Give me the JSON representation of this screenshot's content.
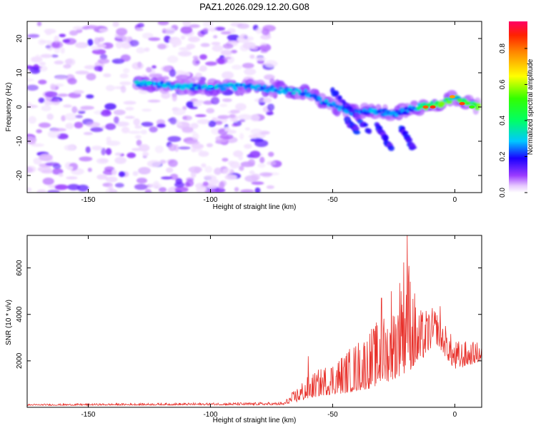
{
  "title": "PAZ1.2026.029.12.20.G08",
  "chart_data": [
    {
      "type": "heatmap",
      "title": "PAZ1.2026.029.12.20.G08",
      "xlabel": "Height of straight line (km)",
      "ylabel": "Frequency (Hz)",
      "xlim": [
        -175,
        11
      ],
      "ylim": [
        -25,
        25
      ],
      "xticks": [
        -150,
        -100,
        -50,
        0
      ],
      "xtick_labels": [
        "-150",
        "-100",
        "-50",
        "0"
      ],
      "yticks": [
        -20,
        -10,
        0,
        10,
        20
      ],
      "ytick_labels": [
        "-20",
        "-10",
        "0",
        "10",
        "20"
      ],
      "noise_region_x": [
        -175,
        -73
      ],
      "ridge": [
        {
          "x": -130,
          "y": 7.0
        },
        {
          "x": -120,
          "y": 6.5
        },
        {
          "x": -110,
          "y": 6.0
        },
        {
          "x": -100,
          "y": 5.8
        },
        {
          "x": -90,
          "y": 6.0
        },
        {
          "x": -80,
          "y": 5.5
        },
        {
          "x": -70,
          "y": 5.0
        },
        {
          "x": -60,
          "y": 4.0
        },
        {
          "x": -55,
          "y": 2.0
        },
        {
          "x": -50,
          "y": 0.5
        },
        {
          "x": -45,
          "y": -1.0
        },
        {
          "x": -40,
          "y": -1.5
        },
        {
          "x": -35,
          "y": -1.0
        },
        {
          "x": -30,
          "y": -1.5
        },
        {
          "x": -25,
          "y": -2.0
        },
        {
          "x": -20,
          "y": -1.0
        },
        {
          "x": -15,
          "y": 0.0
        },
        {
          "x": -10,
          "y": 0.5
        },
        {
          "x": -5,
          "y": 1.0
        },
        {
          "x": 0,
          "y": 3.0
        },
        {
          "x": 5,
          "y": 1.0
        },
        {
          "x": 10,
          "y": 0.0
        }
      ],
      "colorbar": {
        "label": "Normalized spectral amplitude",
        "ticks": [
          0.0,
          0.2,
          0.4,
          0.6,
          0.8
        ],
        "tick_labels": [
          "0.0",
          "0.2",
          "0.4",
          "0.6",
          "0.8"
        ],
        "range": [
          0,
          0.95
        ]
      }
    },
    {
      "type": "line",
      "xlabel": "Height of straight line (km)",
      "ylabel": "SNR (10 * v/v)",
      "xlim": [
        -175,
        11
      ],
      "ylim": [
        0,
        7400
      ],
      "xticks": [
        -150,
        -100,
        -50,
        0
      ],
      "xtick_labels": [
        "-150",
        "-100",
        "-50",
        "0"
      ],
      "yticks": [
        2000,
        4000,
        6000
      ],
      "ytick_labels": [
        "2000",
        "4000",
        "6000"
      ],
      "series": [
        {
          "name": "SNR",
          "color": "#e8302a",
          "envelope": [
            {
              "x": -175,
              "base": 80,
              "amp": 60
            },
            {
              "x": -70,
              "base": 100,
              "amp": 120
            },
            {
              "x": -62,
              "base": 300,
              "amp": 900
            },
            {
              "x": -55,
              "base": 500,
              "amp": 1200
            },
            {
              "x": -45,
              "base": 600,
              "amp": 1800
            },
            {
              "x": -35,
              "base": 800,
              "amp": 2600
            },
            {
              "x": -25,
              "base": 1200,
              "amp": 3200
            },
            {
              "x": -20,
              "base": 1500,
              "amp": 5800
            },
            {
              "x": -15,
              "base": 1800,
              "amp": 2400
            },
            {
              "x": -8,
              "base": 2800,
              "amp": 1500
            },
            {
              "x": 0,
              "base": 1600,
              "amp": 1300
            },
            {
              "x": 11,
              "base": 2000,
              "amp": 800
            }
          ],
          "peaks": [
            {
              "x": -19.5,
              "y": 7400
            },
            {
              "x": -6,
              "y": 4350
            },
            {
              "x": -30,
              "y": 4700
            },
            {
              "x": -26,
              "y": 5000
            },
            {
              "x": -22,
              "y": 5000
            },
            {
              "x": -60,
              "y": 2200
            }
          ]
        }
      ]
    }
  ]
}
